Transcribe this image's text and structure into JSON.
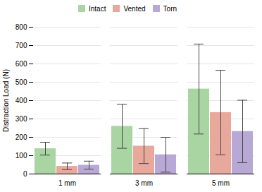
{
  "chart_data": {
    "type": "bar",
    "categories": [
      "1 mm",
      "3 mm",
      "5 mm"
    ],
    "series": [
      {
        "name": "Intact",
        "color": "#a8d5a2",
        "values": [
          138,
          260,
          463
        ],
        "errors": [
          35,
          120,
          245
        ]
      },
      {
        "name": "Vented",
        "color": "#e8a89c",
        "values": [
          42,
          152,
          335
        ],
        "errors": [
          18,
          95,
          230
        ]
      },
      {
        "name": "Torn",
        "color": "#b8a8d5",
        "values": [
          48,
          105,
          232
        ],
        "errors": [
          22,
          95,
          170
        ]
      }
    ],
    "ylabel": "Distraction Load (N)",
    "ylim": [
      0,
      800
    ],
    "yticks": [
      0,
      100,
      200,
      300,
      400,
      500,
      600,
      700,
      800
    ],
    "grid": true,
    "legend": "upper center"
  }
}
